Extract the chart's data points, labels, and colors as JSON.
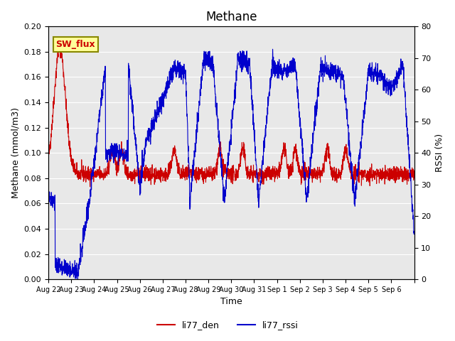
{
  "title": "Methane",
  "xlabel": "Time",
  "ylabel_left": "Methane (mmol/m3)",
  "ylabel_right": "RSSI (%)",
  "ylim_left": [
    0.0,
    0.2
  ],
  "ylim_right": [
    0,
    80
  ],
  "yticks_left": [
    0.0,
    0.02,
    0.04,
    0.06,
    0.08,
    0.1,
    0.12,
    0.14,
    0.16,
    0.18,
    0.2
  ],
  "yticks_right": [
    0,
    10,
    20,
    30,
    40,
    50,
    60,
    70,
    80
  ],
  "x_tick_pos": [
    0,
    1,
    2,
    3,
    4,
    5,
    6,
    7,
    8,
    9,
    10,
    11,
    12,
    13,
    14,
    15,
    16
  ],
  "x_labels": [
    "Aug 22",
    "Aug 23",
    "Aug 24",
    "Aug 25",
    "Aug 26",
    "Aug 27",
    "Aug 28",
    "Aug 29",
    "Aug 30",
    "Aug 31",
    "Sep 1",
    "Sep 2",
    "Sep 3",
    "Sep 4",
    "Sep 5",
    "Sep 6",
    ""
  ],
  "color_den": "#cc0000",
  "color_rssi": "#0000cc",
  "bg_color": "#e8e8e8",
  "legend_box_color": "#ffff99",
  "legend_box_edge": "#888800",
  "annotation_text": "SW_flux",
  "annotation_color": "#cc0000"
}
